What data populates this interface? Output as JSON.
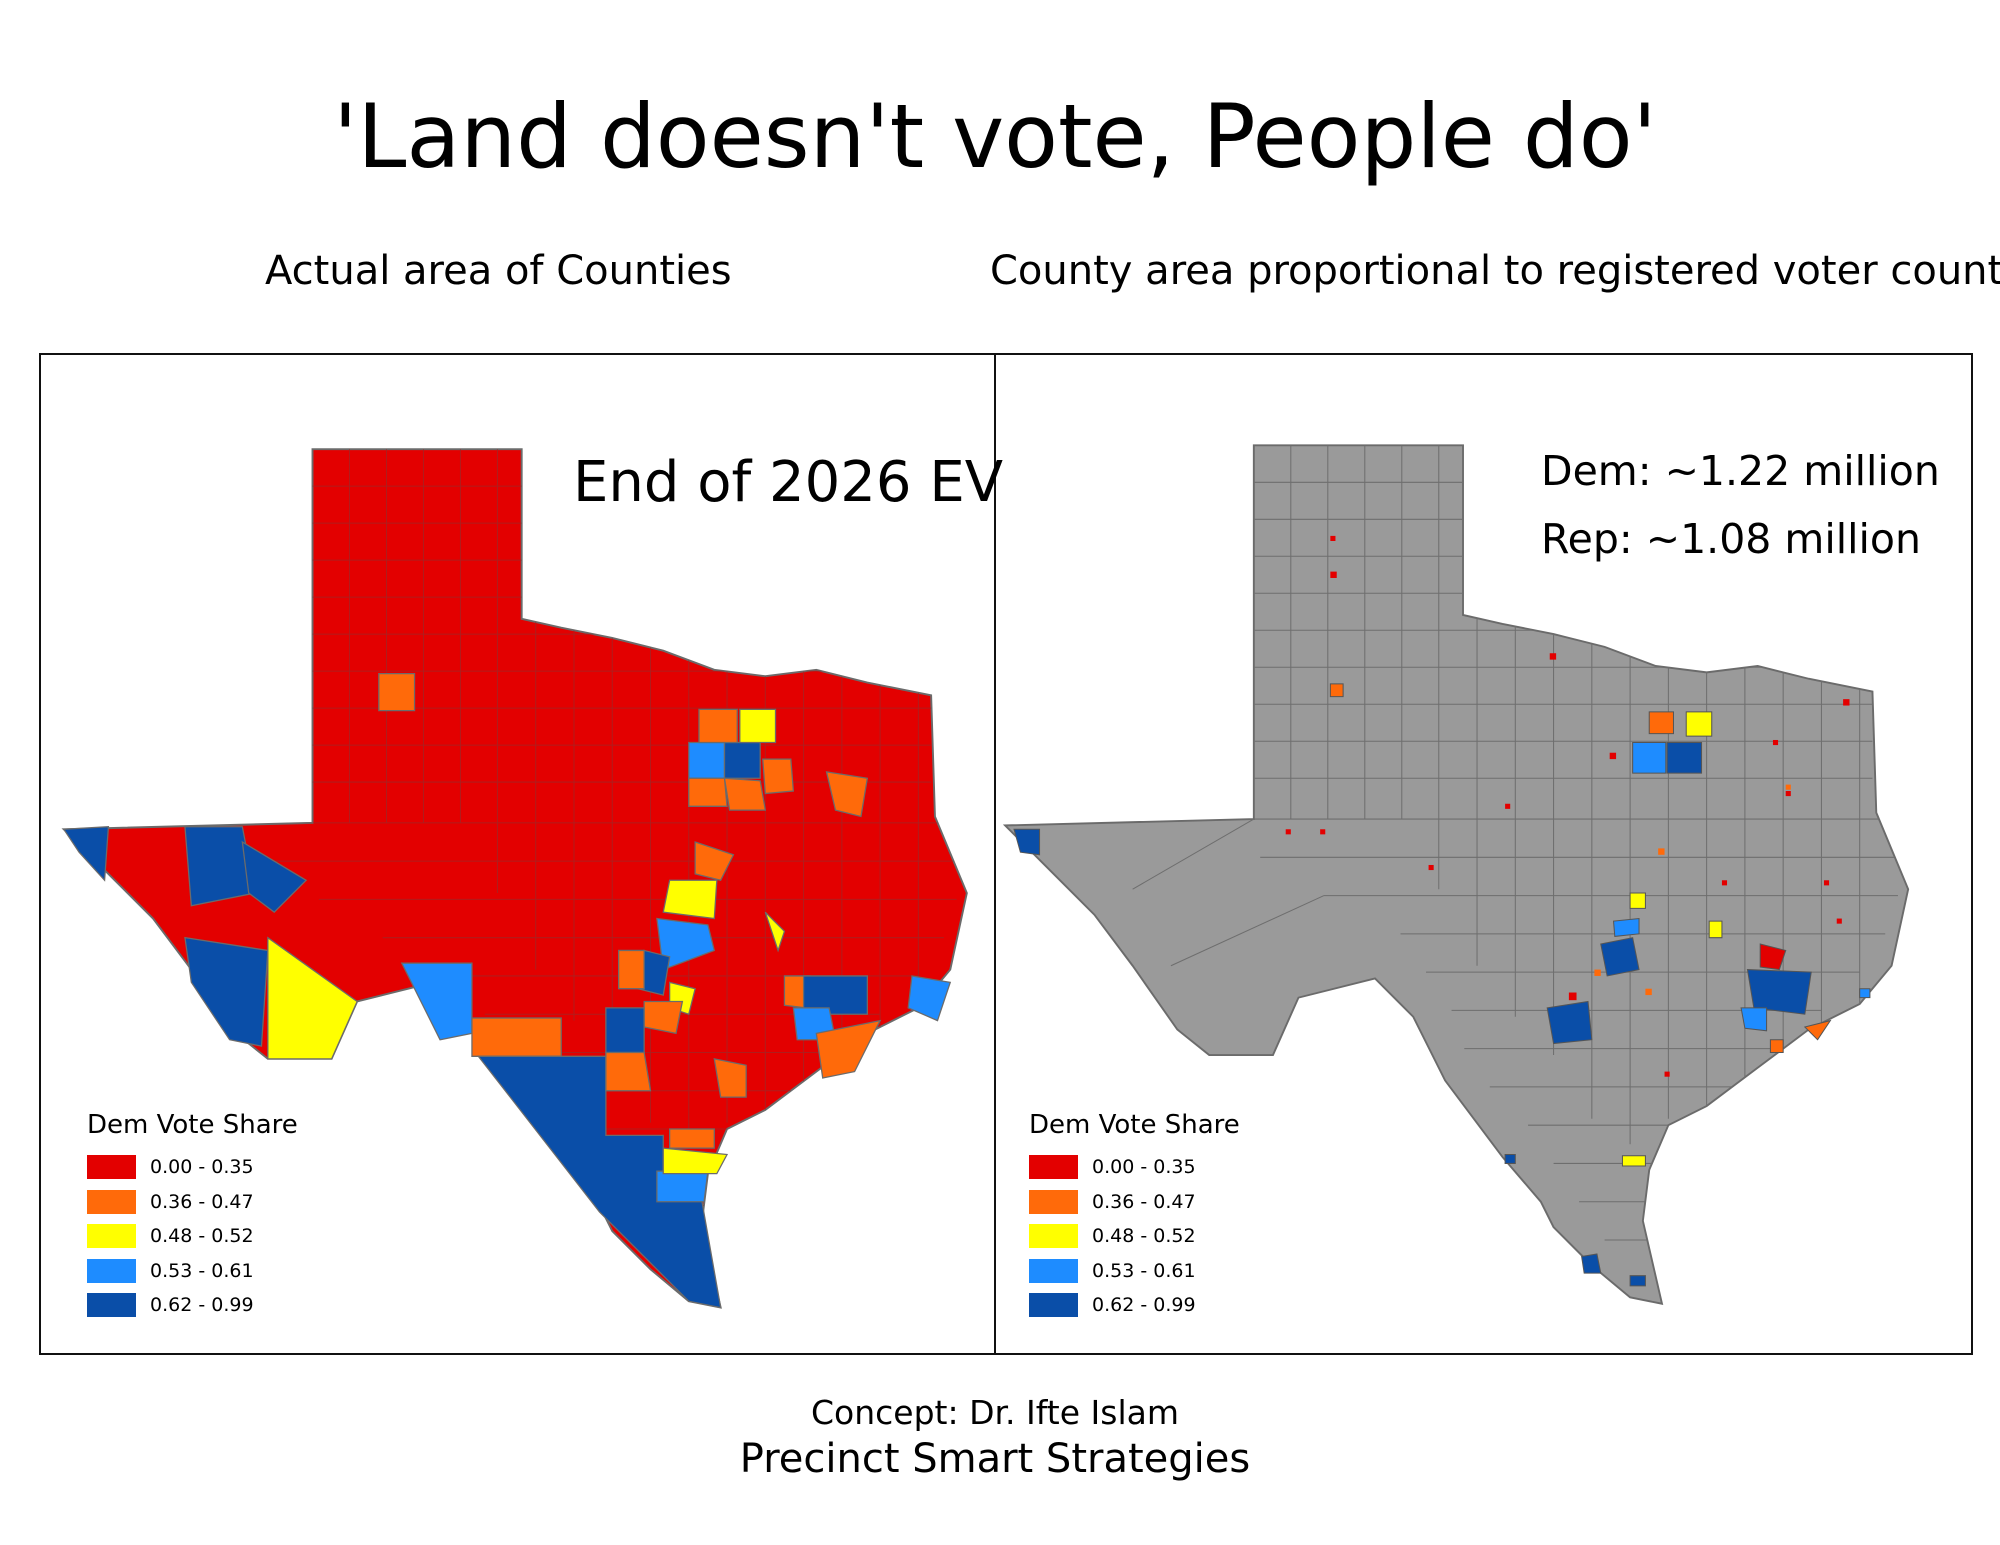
{
  "title": "'Land doesn't vote, People do'",
  "left_panel": {
    "subtitle": "Actual area of Counties",
    "overlay_label": "End of 2026 EV"
  },
  "right_panel": {
    "subtitle": "County area proportional to registered voter count",
    "dem_count": "Dem: ~1.22 million",
    "rep_count": "Rep: ~1.08 million"
  },
  "legend": {
    "title": "Dem Vote Share",
    "items": [
      {
        "label": "0.00 - 0.35",
        "color": "#e30000"
      },
      {
        "label": "0.36 - 0.47",
        "color": "#ff6a0a"
      },
      {
        "label": "0.48 - 0.52",
        "color": "#ffff00"
      },
      {
        "label": "0.53 - 0.61",
        "color": "#1e8cff"
      },
      {
        "label": "0.62 - 0.99",
        "color": "#0a4ea8"
      }
    ]
  },
  "colors": {
    "gray": "#9a9a9a",
    "border": "#6b6b6b"
  },
  "footer": {
    "concept": "Concept: Dr. Ifte Islam",
    "organization": "Precinct Smart Strategies"
  }
}
